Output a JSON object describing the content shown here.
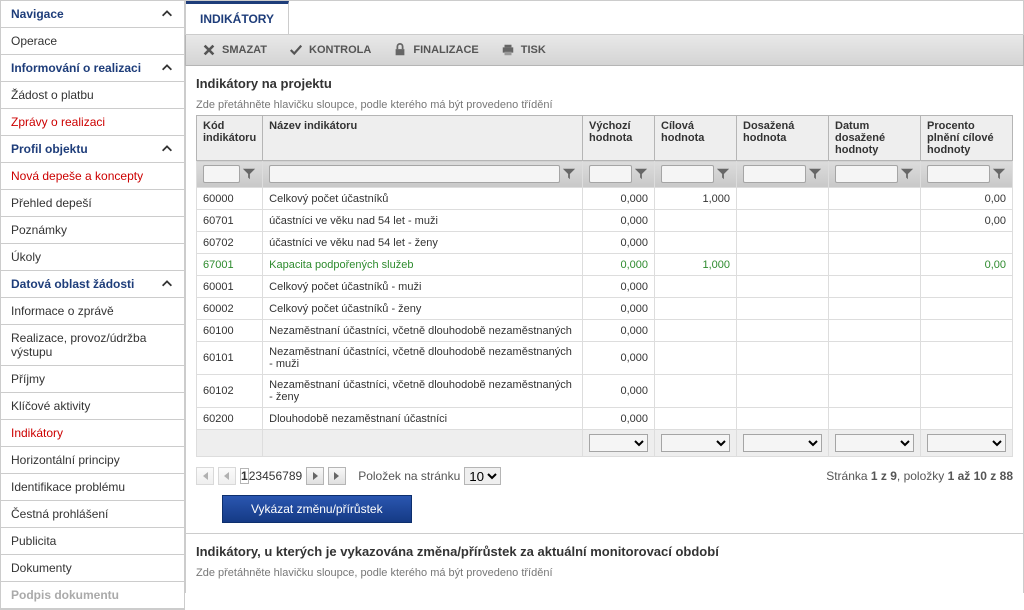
{
  "sidebar": {
    "sections": [
      {
        "header": "Navigace",
        "items": [
          {
            "label": "Operace",
            "red": false
          }
        ]
      },
      {
        "header": "Informování o realizaci",
        "items": [
          {
            "label": "Žádost o platbu",
            "red": false
          },
          {
            "label": "Zprávy o realizaci",
            "red": true
          }
        ]
      },
      {
        "header": "Profil objektu",
        "items": [
          {
            "label": "Nová depeše a koncepty",
            "red": true
          },
          {
            "label": "Přehled depeší",
            "red": false
          },
          {
            "label": "Poznámky",
            "red": false
          },
          {
            "label": "Úkoly",
            "red": false
          }
        ]
      },
      {
        "header": "Datová oblast žádosti",
        "items": [
          {
            "label": "Informace o zprávě",
            "red": false
          },
          {
            "label": "Realizace, provoz/údržba výstupu",
            "red": false
          },
          {
            "label": "Příjmy",
            "red": false
          },
          {
            "label": "Klíčové aktivity",
            "red": false
          },
          {
            "label": "Indikátory",
            "red": true
          },
          {
            "label": "Horizontální principy",
            "red": false
          },
          {
            "label": "Identifikace problému",
            "red": false
          },
          {
            "label": "Čestná prohlášení",
            "red": false
          },
          {
            "label": "Publicita",
            "red": false
          },
          {
            "label": "Dokumenty",
            "red": false
          }
        ]
      }
    ],
    "disabled_item": "Podpis dokumentu"
  },
  "tab_label": "INDIKÁTORY",
  "toolbar": {
    "smazat": "SMAZAT",
    "kontrola": "KONTROLA",
    "finalizace": "FINALIZACE",
    "tisk": "TISK"
  },
  "section1": {
    "title": "Indikátory na projektu",
    "group_hint": "Zde přetáhněte hlavičku sloupce, podle kterého má být provedeno třídění",
    "cols": {
      "kod": "Kód indikátoru",
      "nazev": "Název indikátoru",
      "vychozi": "Výchozí hodnota",
      "cilova": "Cílová hodnota",
      "dosazena": "Dosažená hodnota",
      "datum": "Datum dosažené hodnoty",
      "procento": "Procento plnění cílové hodnoty"
    },
    "rows": [
      {
        "kod": "60000",
        "nazev": "Celkový počet účastníků",
        "vychozi": "0,000",
        "cilova": "1,000",
        "dosazena": "",
        "datum": "",
        "procento": "0,00",
        "green": false
      },
      {
        "kod": "60701",
        "nazev": "účastníci ve věku nad 54 let - muži",
        "vychozi": "0,000",
        "cilova": "",
        "dosazena": "",
        "datum": "",
        "procento": "0,00",
        "green": false
      },
      {
        "kod": "60702",
        "nazev": "účastníci ve věku nad 54 let - ženy",
        "vychozi": "0,000",
        "cilova": "",
        "dosazena": "",
        "datum": "",
        "procento": "",
        "green": false
      },
      {
        "kod": "67001",
        "nazev": "Kapacita podpořených služeb",
        "vychozi": "0,000",
        "cilova": "1,000",
        "dosazena": "",
        "datum": "",
        "procento": "0,00",
        "green": true
      },
      {
        "kod": "60001",
        "nazev": "Celkový počet účastníků - muži",
        "vychozi": "0,000",
        "cilova": "",
        "dosazena": "",
        "datum": "",
        "procento": "",
        "green": false
      },
      {
        "kod": "60002",
        "nazev": "Celkový počet účastníků - ženy",
        "vychozi": "0,000",
        "cilova": "",
        "dosazena": "",
        "datum": "",
        "procento": "",
        "green": false
      },
      {
        "kod": "60100",
        "nazev": "Nezaměstnaní účastníci, včetně dlouhodobě nezaměstnaných",
        "vychozi": "0,000",
        "cilova": "",
        "dosazena": "",
        "datum": "",
        "procento": "",
        "green": false
      },
      {
        "kod": "60101",
        "nazev": "Nezaměstnaní účastníci, včetně dlouhodobě nezaměstnaných - muži",
        "vychozi": "0,000",
        "cilova": "",
        "dosazena": "",
        "datum": "",
        "procento": "",
        "green": false
      },
      {
        "kod": "60102",
        "nazev": "Nezaměstnaní účastníci, včetně dlouhodobě nezaměstnaných - ženy",
        "vychozi": "0,000",
        "cilova": "",
        "dosazena": "",
        "datum": "",
        "procento": "",
        "green": false
      },
      {
        "kod": "60200",
        "nazev": "Dlouhodobě nezaměstnaní účastníci",
        "vychozi": "0,000",
        "cilova": "",
        "dosazena": "",
        "datum": "",
        "procento": "",
        "green": false
      }
    ],
    "pager": {
      "pages": [
        "1",
        "2",
        "3",
        "4",
        "5",
        "6",
        "7",
        "8",
        "9"
      ],
      "current": "1",
      "per_page_label": "Položek na stránku",
      "per_page": "10",
      "info_prefix": "Stránka ",
      "info_page": "1 z 9",
      "info_mid": ", položky ",
      "info_items": "1 až 10 z 88"
    },
    "action_btn": "Vykázat změnu/přírůstek"
  },
  "section2": {
    "title": "Indikátory, u kterých je vykazována změna/přírůstek za aktuální monitorovací období",
    "group_hint": "Zde přetáhněte hlavičku sloupce, podle kterého má být provedeno třídění"
  },
  "colors": {
    "nav_blue": "#1e3d7a",
    "red": "#c00",
    "green_row": "#2e8b2e",
    "button_bg": "#153a85"
  }
}
